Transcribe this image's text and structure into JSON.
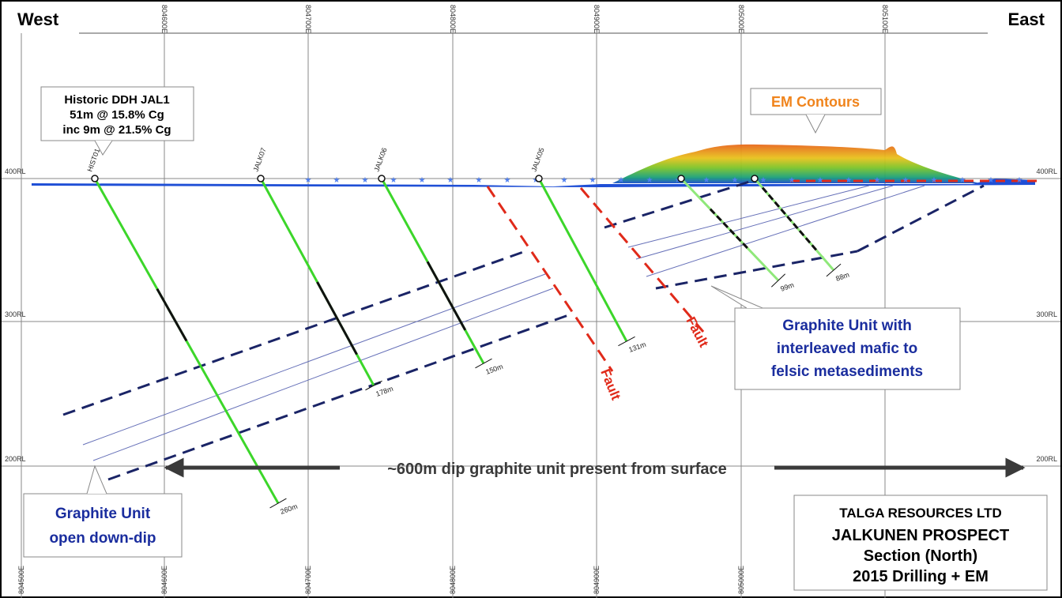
{
  "header": {
    "west": "West",
    "east": "East"
  },
  "grid": {
    "eastings_top": [
      "804600E",
      "804700E",
      "804800E",
      "804900E",
      "805000E",
      "805100E"
    ],
    "eastings_bottom": [
      "804500E",
      "804600E",
      "804700E",
      "804800E",
      "804900E",
      "805000E"
    ],
    "rl_left": [
      "400RL",
      "300RL",
      "200RL"
    ],
    "rl_right": [
      "400RL",
      "300RL",
      "200RL"
    ]
  },
  "callouts": {
    "historic": [
      "Historic DDH JAL1",
      "51m @ 15.8% Cg",
      "inc 9m @ 21.5% Cg"
    ],
    "em": "EM Contours",
    "graphite_unit": [
      "Graphite Unit with",
      "interleaved mafic to",
      "felsic metasediments"
    ],
    "open_down_dip": [
      "Graphite Unit",
      "open down-dip"
    ],
    "dip_arrow": "~600m dip graphite unit present from surface"
  },
  "holes": [
    {
      "name": "HIST01",
      "depth": "260m"
    },
    {
      "name": "JALK07",
      "depth": "178m"
    },
    {
      "name": "JALK06",
      "depth": "150m"
    },
    {
      "name": "JALK05",
      "depth": "131m"
    },
    {
      "depth": "99m"
    },
    {
      "depth": "88m"
    }
  ],
  "faults": [
    "Fault",
    "Fault"
  ],
  "title_block": [
    "TALGA RESOURCES LTD",
    "JALKUNEN PROSPECT",
    "Section (North)",
    "2015 Drilling + EM"
  ]
}
